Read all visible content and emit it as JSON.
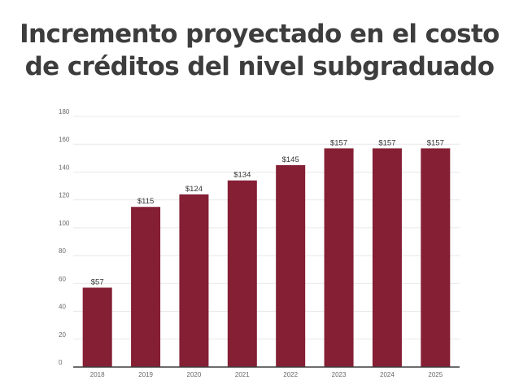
{
  "title_line1": "Incremento proyectado en el costo",
  "title_line2": "de créditos del nivel subgraduado",
  "colors": {
    "bar": "#841f34",
    "title": "#3d3d3d"
  },
  "chart_data": {
    "type": "bar",
    "categories": [
      "2018",
      "2019",
      "2020",
      "2021",
      "2022",
      "2023",
      "2024",
      "2025"
    ],
    "values": [
      57,
      115,
      124,
      134,
      145,
      157,
      157,
      157
    ],
    "data_labels": [
      "$57",
      "$115",
      "$124",
      "$134",
      "$145",
      "$157",
      "$157",
      "$157"
    ],
    "y_ticks": [
      "0",
      "20",
      "40",
      "60",
      "80",
      "100",
      "120",
      "140",
      "160",
      "180"
    ],
    "ylim": [
      0,
      180
    ],
    "grid": true,
    "legend": "none"
  }
}
